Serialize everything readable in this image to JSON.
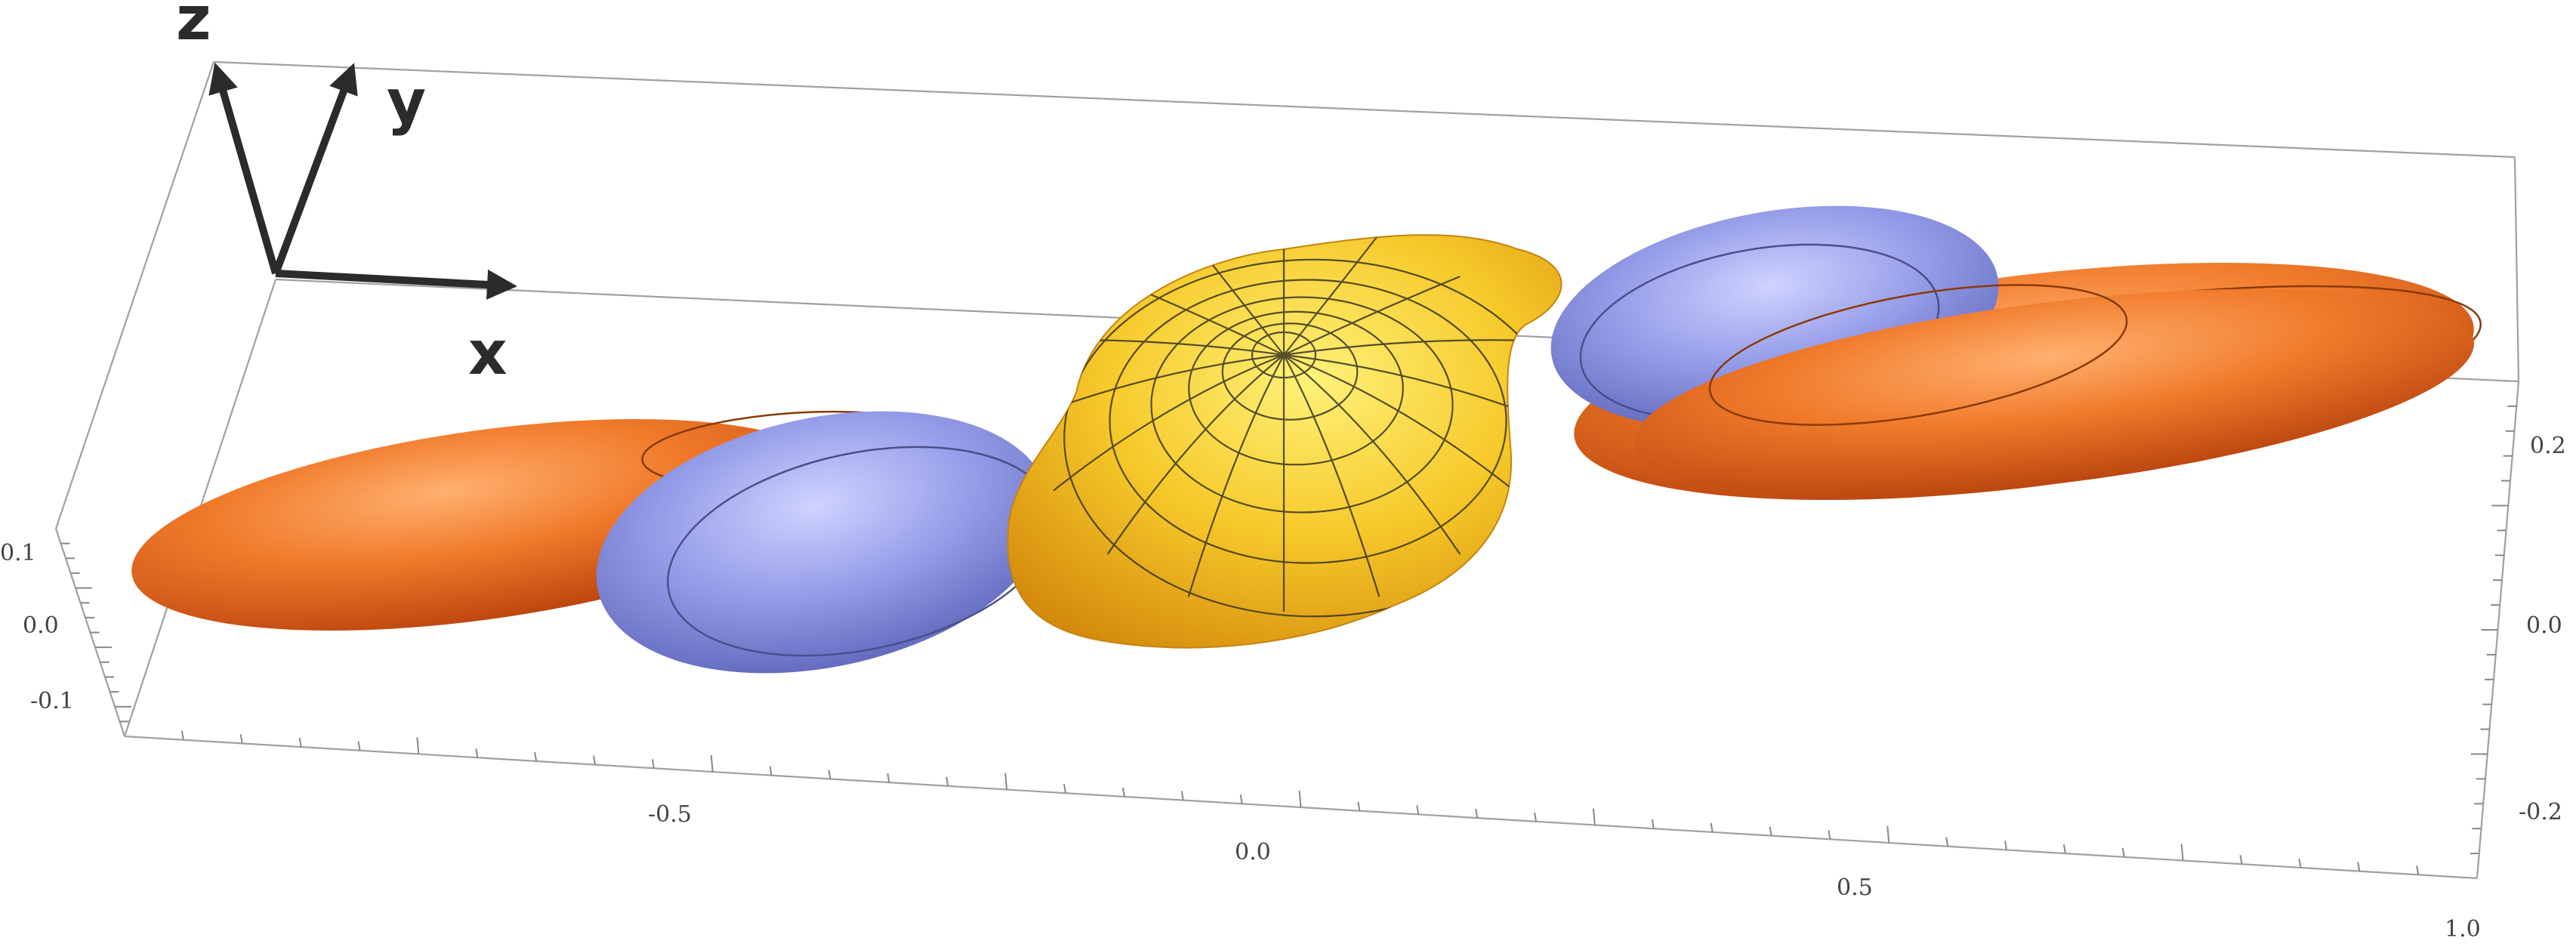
{
  "orientation_triad": {
    "x_label": "x",
    "y_label": "y",
    "z_label": "z",
    "arrow_color": "#2b2b2b"
  },
  "axes": {
    "x_axis_ticks": [
      "-0.5",
      "0.0",
      "0.5",
      "1.0"
    ],
    "z_axis_ticks_left": [
      "0.1",
      "0.0",
      "-0.1"
    ],
    "y_axis_ticks_right": [
      "0.2",
      "0.0",
      "-0.2"
    ]
  },
  "surfaces": [
    {
      "name": "orange-lobes",
      "color": "#e8661e"
    },
    {
      "name": "blue-lobes",
      "color": "#8a93e0"
    },
    {
      "name": "yellow-core",
      "color": "#f3bf1c"
    }
  ],
  "box_color": "#a0a0a0"
}
